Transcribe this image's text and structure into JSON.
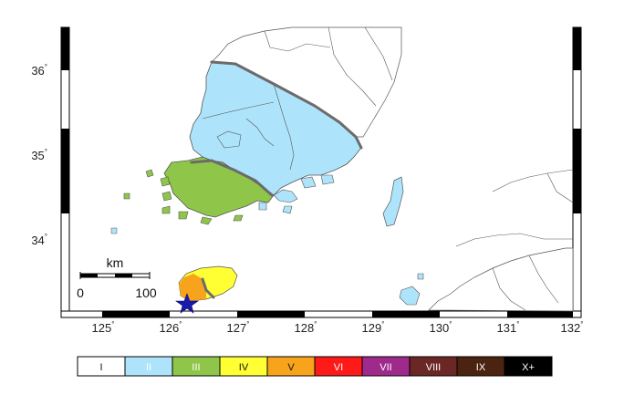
{
  "map": {
    "lat_labels": [
      "36",
      "35",
      "34"
    ],
    "lon_labels": [
      "125",
      "126",
      "127",
      "128",
      "129",
      "130",
      "131",
      "132"
    ],
    "degree_symbol": "°",
    "scale_bar": {
      "unit": "km",
      "start_label": "0",
      "end_label": "100"
    },
    "epicenter": {
      "lon": 126.25,
      "lat": 33.15,
      "marker": "star-icon",
      "color": "#1a1aa8"
    },
    "colors": {
      "intensity_II": "#aee4fb",
      "intensity_III": "#8fc64a",
      "intensity_IV": "#ffff33",
      "intensity_V": "#f7a41c",
      "coastline": "#444444",
      "contour": "#6b6b6b"
    }
  },
  "legend": {
    "items": [
      {
        "label": "I",
        "color": "#ffffff"
      },
      {
        "label": "II",
        "color": "#aee4fb"
      },
      {
        "label": "III",
        "color": "#8fc64a"
      },
      {
        "label": "IV",
        "color": "#ffff33"
      },
      {
        "label": "V",
        "color": "#f7a41c"
      },
      {
        "label": "VI",
        "color": "#ff1a1a"
      },
      {
        "label": "VII",
        "color": "#9e2b8c"
      },
      {
        "label": "VIII",
        "color": "#6b2626"
      },
      {
        "label": "IX",
        "color": "#4a2410"
      },
      {
        "label": "X+",
        "color": "#000000"
      }
    ]
  }
}
